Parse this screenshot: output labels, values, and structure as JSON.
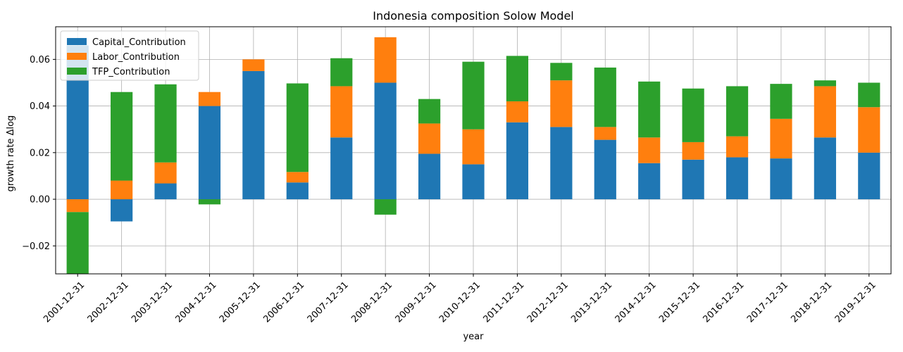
{
  "chart_data": {
    "type": "bar",
    "stacked": true,
    "title": "Indonesia composition Solow Model",
    "xlabel": "year",
    "ylabel": "growth rate Δlog",
    "ylim": [
      -0.032,
      0.074
    ],
    "yticks": [
      -0.02,
      0.0,
      0.02,
      0.04,
      0.06
    ],
    "ytick_labels": [
      "−0.02",
      "0.00",
      "0.02",
      "0.04",
      "0.06"
    ],
    "grid": true,
    "legend_position": "top-left",
    "categories": [
      "2001-12-31",
      "2002-12-31",
      "2003-12-31",
      "2004-12-31",
      "2005-12-31",
      "2006-12-31",
      "2007-12-31",
      "2008-12-31",
      "2009-12-31",
      "2010-12-31",
      "2011-12-31",
      "2012-12-31",
      "2013-12-31",
      "2014-12-31",
      "2015-12-31",
      "2016-12-31",
      "2017-12-31",
      "2018-12-31",
      "2019-12-31"
    ],
    "series": [
      {
        "name": "Capital_Contribution",
        "color": "#1f77b4",
        "values": [
          0.066,
          -0.0095,
          0.0068,
          0.04,
          0.055,
          0.0072,
          0.0265,
          0.05,
          0.0195,
          0.015,
          0.033,
          0.031,
          0.0255,
          0.0155,
          0.017,
          0.018,
          0.0175,
          0.0265,
          0.02
        ]
      },
      {
        "name": "Labor_Contribution",
        "color": "#ff7f0e",
        "values": [
          -0.0055,
          0.008,
          0.009,
          0.006,
          0.005,
          0.0045,
          0.022,
          0.0195,
          0.013,
          0.015,
          0.009,
          0.02,
          0.0055,
          0.011,
          0.0075,
          0.009,
          0.017,
          0.022,
          0.0195
        ]
      },
      {
        "name": "TFP_Contribution",
        "color": "#2ca02c",
        "values": [
          -0.0265,
          0.038,
          0.0335,
          -0.0022,
          0.0,
          0.038,
          0.012,
          -0.0066,
          0.0105,
          0.029,
          0.0195,
          0.0075,
          0.0255,
          0.024,
          0.023,
          0.0215,
          0.015,
          0.0025,
          0.0105
        ]
      }
    ]
  }
}
